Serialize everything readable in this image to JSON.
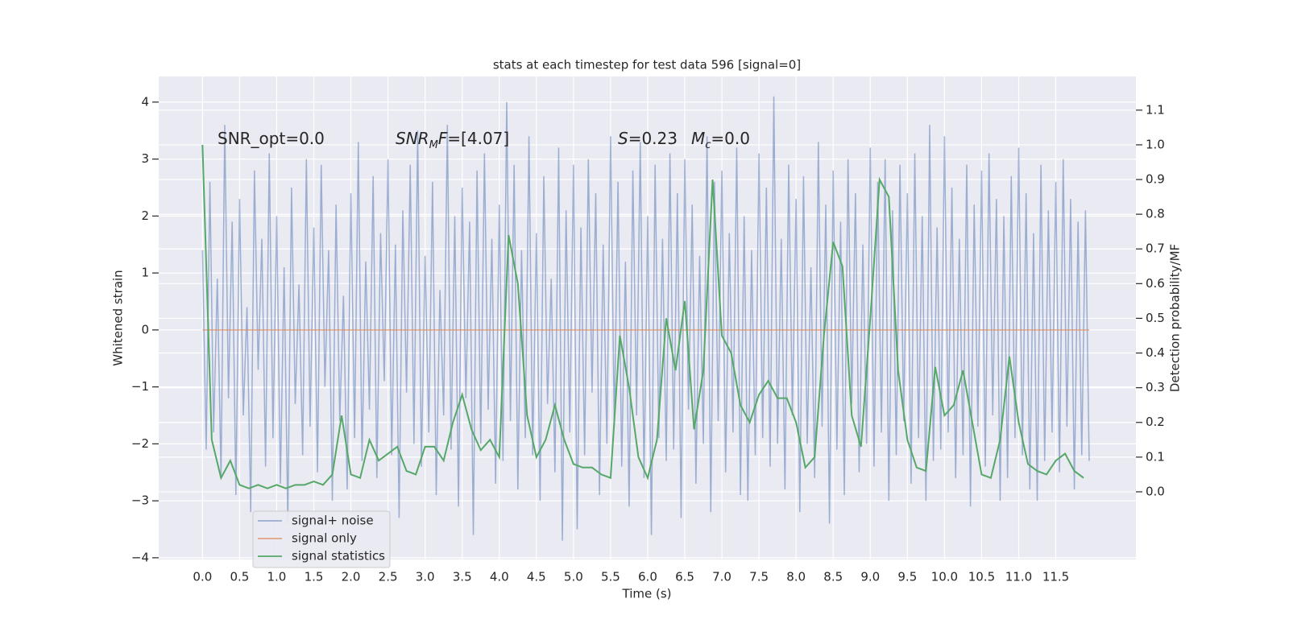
{
  "chart_data": {
    "type": "line",
    "title": "stats at each timestep for test data 596 [signal=0]",
    "xlabel": "Time (s)",
    "ylabel": "Whitened strain",
    "y2label": "Detection probability/MF",
    "annotations": [
      {
        "parts": [
          {
            "text": "SNR_opt=0.0",
            "style": "normal"
          }
        ]
      },
      {
        "parts": [
          {
            "text": "SNR",
            "style": "italic"
          },
          {
            "text": "M",
            "style": "sub"
          },
          {
            "text": "F",
            "style": "italic"
          },
          {
            "text": "=[4.07]",
            "style": "normal"
          }
        ]
      },
      {
        "parts": [
          {
            "text": "S",
            "style": "italic"
          },
          {
            "text": "=0.23",
            "style": "normal"
          }
        ]
      },
      {
        "parts": [
          {
            "text": "M",
            "style": "italic"
          },
          {
            "text": "c",
            "style": "sub"
          },
          {
            "text": "=0.0",
            "style": "normal"
          }
        ]
      }
    ],
    "xlim": [
      -0.59,
      12.58
    ],
    "ylim": [
      -4.03,
      4.45
    ],
    "y2lim": [
      -0.195,
      1.197
    ],
    "xticks": [
      {
        "value": 0,
        "label": "0.0"
      },
      0.5,
      {
        "value": 1,
        "label": "1.0"
      },
      1.5,
      {
        "value": 2,
        "label": "2.0"
      },
      2.5,
      {
        "value": 3,
        "label": "3.0"
      },
      3.5,
      {
        "value": 4,
        "label": "4.0"
      },
      4.5,
      {
        "value": 5,
        "label": "5.0"
      },
      5.5,
      {
        "value": 6,
        "label": "6.0"
      },
      6.5,
      {
        "value": 7,
        "label": "7.0"
      },
      7.5,
      {
        "value": 8,
        "label": "8.0"
      },
      8.5,
      {
        "value": 9,
        "label": "9.0"
      },
      9.5,
      {
        "value": 10,
        "label": "10.0"
      },
      10.5,
      {
        "value": 11,
        "label": "11.0"
      },
      11.5
    ],
    "yticks": [
      {
        "value": -4,
        "label": "−4"
      },
      {
        "value": -3,
        "label": "−3"
      },
      {
        "value": -2,
        "label": "−2"
      },
      {
        "value": -1,
        "label": "−1"
      },
      0,
      1,
      2,
      3,
      4
    ],
    "y2ticks": [
      {
        "value": 0,
        "label": "0.0"
      },
      0.1,
      0.2,
      0.3,
      0.4,
      0.5,
      0.6,
      0.7,
      0.8,
      0.9,
      {
        "value": 1,
        "label": "1.0"
      },
      1.1
    ],
    "grid": true,
    "legend": "lower left",
    "series": [
      {
        "name": "signal+ noise",
        "color": "#4c72b0",
        "opacity": 0.5,
        "x": [
          0,
          0.05,
          0.1,
          0.15,
          0.2,
          0.25,
          0.3,
          0.35,
          0.4,
          0.45,
          0.5,
          0.55,
          0.6,
          0.65,
          0.7,
          0.75,
          0.8,
          0.85,
          0.9,
          0.95,
          1,
          1.05,
          1.1,
          1.15,
          1.2,
          1.25,
          1.3,
          1.35,
          1.4,
          1.45,
          1.5,
          1.55,
          1.6,
          1.65,
          1.7,
          1.75,
          1.8,
          1.85,
          1.9,
          1.95,
          2,
          2.05,
          2.1,
          2.15,
          2.2,
          2.25,
          2.3,
          2.35,
          2.4,
          2.45,
          2.5,
          2.55,
          2.6,
          2.65,
          2.7,
          2.75,
          2.8,
          2.85,
          2.9,
          2.95,
          3,
          3.05,
          3.1,
          3.15,
          3.2,
          3.25,
          3.3,
          3.35,
          3.4,
          3.45,
          3.5,
          3.55,
          3.6,
          3.65,
          3.7,
          3.75,
          3.8,
          3.85,
          3.9,
          3.95,
          4,
          4.05,
          4.1,
          4.15,
          4.2,
          4.25,
          4.3,
          4.35,
          4.4,
          4.45,
          4.5,
          4.55,
          4.6,
          4.65,
          4.7,
          4.75,
          4.8,
          4.85,
          4.9,
          4.95,
          5,
          5.05,
          5.1,
          5.15,
          5.2,
          5.25,
          5.3,
          5.35,
          5.4,
          5.45,
          5.5,
          5.55,
          5.6,
          5.65,
          5.7,
          5.75,
          5.8,
          5.85,
          5.9,
          5.95,
          6,
          6.05,
          6.1,
          6.15,
          6.2,
          6.25,
          6.3,
          6.35,
          6.4,
          6.45,
          6.5,
          6.55,
          6.6,
          6.65,
          6.7,
          6.75,
          6.8,
          6.85,
          6.9,
          6.95,
          7,
          7.05,
          7.1,
          7.15,
          7.2,
          7.25,
          7.3,
          7.35,
          7.4,
          7.45,
          7.5,
          7.55,
          7.6,
          7.65,
          7.7,
          7.75,
          7.8,
          7.85,
          7.9,
          7.95,
          8,
          8.05,
          8.1,
          8.15,
          8.2,
          8.25,
          8.3,
          8.35,
          8.4,
          8.45,
          8.5,
          8.55,
          8.6,
          8.65,
          8.7,
          8.75,
          8.8,
          8.85,
          8.9,
          8.95,
          9,
          9.05,
          9.1,
          9.15,
          9.2,
          9.25,
          9.3,
          9.35,
          9.4,
          9.45,
          9.5,
          9.55,
          9.6,
          9.65,
          9.7,
          9.75,
          9.8,
          9.85,
          9.9,
          9.95,
          10,
          10.05,
          10.1,
          10.15,
          10.2,
          10.25,
          10.3,
          10.35,
          10.4,
          10.45,
          10.5,
          10.55,
          10.6,
          10.65,
          10.7,
          10.75,
          10.8,
          10.85,
          10.9,
          10.95,
          11,
          11.05,
          11.1,
          11.15,
          11.2,
          11.25,
          11.3,
          11.35,
          11.4,
          11.45,
          11.5,
          11.55,
          11.6,
          11.65,
          11.7,
          11.75,
          11.8,
          11.85,
          11.9,
          11.95
        ],
        "values": [
          1.4,
          -2.1,
          2.6,
          -1.8,
          0.9,
          -2.6,
          3.6,
          -1.2,
          1.9,
          -2.9,
          2.3,
          -1.5,
          0.4,
          -3.2,
          2.8,
          -0.7,
          1.6,
          -2.4,
          3.1,
          -1.9,
          2.0,
          -2.7,
          1.1,
          -3.4,
          2.5,
          -1.3,
          0.8,
          -2.2,
          3.0,
          -1.7,
          1.8,
          -2.5,
          2.9,
          -1.0,
          1.4,
          -3.0,
          2.2,
          -1.6,
          0.6,
          -2.8,
          2.4,
          -1.9,
          3.3,
          -2.3,
          1.2,
          -1.4,
          2.7,
          -2.6,
          1.7,
          -0.9,
          3.0,
          -2.2,
          1.5,
          -3.3,
          2.1,
          -1.1,
          2.9,
          -2.0,
          3.5,
          -2.4,
          1.3,
          -1.8,
          2.6,
          -2.9,
          0.7,
          -1.5,
          3.6,
          -2.1,
          2.0,
          -3.1,
          2.5,
          -1.2,
          1.9,
          -3.6,
          2.8,
          -2.0,
          3.1,
          -1.4,
          1.6,
          -2.7,
          2.2,
          -2.3,
          4.0,
          -1.6,
          2.9,
          -2.8,
          1.4,
          -1.9,
          3.4,
          -2.2,
          1.7,
          -3.0,
          2.7,
          -1.3,
          0.9,
          -2.5,
          3.2,
          -3.7,
          2.1,
          -1.8,
          2.9,
          -3.5,
          1.8,
          -2.2,
          3.0,
          -1.1,
          2.4,
          -2.9,
          1.5,
          -2.0,
          3.4,
          -1.7,
          2.6,
          -2.4,
          1.2,
          -3.1,
          2.8,
          -1.5,
          3.3,
          -2.6,
          2.0,
          -3.6,
          2.9,
          -1.9,
          1.6,
          -2.3,
          3.1,
          -2.1,
          2.4,
          -3.3,
          3.0,
          -1.4,
          2.2,
          -2.7,
          1.3,
          -2.0,
          3.4,
          -3.2,
          2.6,
          -1.6,
          2.8,
          -2.5,
          1.7,
          -1.8,
          3.2,
          -2.9,
          2.0,
          -3.0,
          1.4,
          -2.2,
          3.1,
          -1.9,
          2.5,
          -2.4,
          4.1,
          -2.0,
          1.6,
          -2.8,
          2.9,
          -1.5,
          2.3,
          -3.2,
          2.7,
          -2.0,
          1.1,
          -2.6,
          3.3,
          -1.7,
          2.2,
          -3.4,
          2.8,
          -2.1,
          1.9,
          -2.9,
          3.0,
          -1.3,
          2.4,
          -2.5,
          1.5,
          -2.0,
          3.2,
          -2.4,
          2.6,
          -1.8,
          3.0,
          -3.0,
          2.1,
          -2.2,
          2.9,
          -1.6,
          2.4,
          -2.7,
          3.1,
          -1.9,
          2.0,
          -3.0,
          3.6,
          -2.3,
          1.8,
          -2.1,
          3.4,
          -1.8,
          2.5,
          -2.6,
          1.6,
          -2.2,
          2.9,
          -3.1,
          2.2,
          -1.7,
          2.8,
          -2.4,
          3.1,
          -1.5,
          2.3,
          -3.0,
          2.0,
          -2.6,
          2.7,
          -1.9,
          3.2,
          -2.2,
          2.4,
          -2.8,
          1.7,
          -3.0,
          2.9,
          -2.3,
          2.1,
          -1.8,
          2.6,
          -2.5,
          3.0,
          -1.7,
          2.3,
          -2.8,
          1.9,
          -2.2,
          2.1,
          -2.3
        ]
      },
      {
        "name": "signal only",
        "color": "#dd8452",
        "opacity": 0.7,
        "x": [
          0,
          11.95
        ],
        "values": [
          0,
          0
        ]
      },
      {
        "name": "signal statistics",
        "color": "#55a868",
        "opacity": 1,
        "axis": "y2",
        "x": [
          0,
          0.125,
          0.25,
          0.375,
          0.5,
          0.625,
          0.75,
          0.875,
          1,
          1.125,
          1.25,
          1.375,
          1.5,
          1.625,
          1.75,
          1.875,
          2,
          2.125,
          2.25,
          2.375,
          2.5,
          2.625,
          2.75,
          2.875,
          3,
          3.125,
          3.25,
          3.375,
          3.5,
          3.625,
          3.75,
          3.875,
          4,
          4.125,
          4.25,
          4.375,
          4.5,
          4.625,
          4.75,
          4.875,
          5,
          5.125,
          5.25,
          5.375,
          5.5,
          5.625,
          5.75,
          5.875,
          6,
          6.125,
          6.25,
          6.375,
          6.5,
          6.625,
          6.75,
          6.875,
          7,
          7.125,
          7.25,
          7.375,
          7.5,
          7.625,
          7.75,
          7.875,
          8,
          8.125,
          8.25,
          8.375,
          8.5,
          8.625,
          8.75,
          8.875,
          9,
          9.125,
          9.25,
          9.375,
          9.5,
          9.625,
          9.75,
          9.875,
          10,
          10.125,
          10.25,
          10.375,
          10.5,
          10.625,
          10.75,
          10.875,
          11,
          11.125,
          11.25,
          11.375,
          11.5,
          11.625,
          11.75,
          11.875
        ],
        "values": [
          1.0,
          0.15,
          0.04,
          0.09,
          0.02,
          0.01,
          0.02,
          0.01,
          0.02,
          0.01,
          0.02,
          0.02,
          0.03,
          0.02,
          0.05,
          0.22,
          0.05,
          0.04,
          0.15,
          0.09,
          0.11,
          0.13,
          0.06,
          0.05,
          0.13,
          0.13,
          0.09,
          0.2,
          0.28,
          0.18,
          0.12,
          0.15,
          0.1,
          0.74,
          0.6,
          0.22,
          0.1,
          0.15,
          0.25,
          0.15,
          0.08,
          0.07,
          0.07,
          0.05,
          0.04,
          0.45,
          0.3,
          0.1,
          0.04,
          0.15,
          0.5,
          0.35,
          0.55,
          0.18,
          0.35,
          0.9,
          0.45,
          0.4,
          0.25,
          0.2,
          0.28,
          0.32,
          0.27,
          0.27,
          0.2,
          0.07,
          0.1,
          0.45,
          0.72,
          0.65,
          0.22,
          0.13,
          0.5,
          0.9,
          0.85,
          0.35,
          0.15,
          0.07,
          0.06,
          0.36,
          0.22,
          0.25,
          0.35,
          0.2,
          0.05,
          0.04,
          0.15,
          0.39,
          0.2,
          0.08,
          0.06,
          0.05,
          0.09,
          0.11,
          0.06,
          0.04
        ]
      }
    ]
  }
}
